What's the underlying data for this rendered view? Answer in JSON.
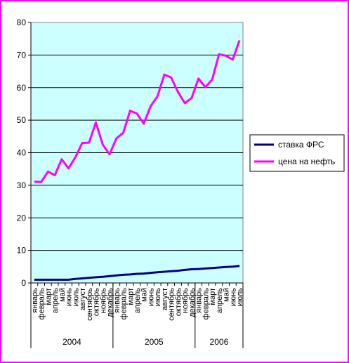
{
  "chart_data": {
    "type": "line",
    "title": "",
    "xlabel": "",
    "ylabel": "",
    "ylim": [
      0,
      80
    ],
    "yticks": [
      0,
      10,
      20,
      30,
      40,
      50,
      60,
      70,
      80
    ],
    "grid": "horizontal",
    "legend_position": "right",
    "plot_background": "#ccffff",
    "categories": [
      "январь",
      "февраль",
      "март",
      "апрель",
      "май",
      "июнь",
      "июль",
      "август",
      "сентябрь",
      "октябрь",
      "ноябрь",
      "декабрь",
      "январь",
      "февраль",
      "март",
      "апрель",
      "май",
      "июнь",
      "июль",
      "август",
      "сентябрь",
      "октябрь",
      "ноябрь",
      "декабрь",
      "январь",
      "февраль",
      "март",
      "апрель",
      "май",
      "июнь",
      "июль"
    ],
    "years": [
      {
        "label": "2004",
        "start": 0,
        "count": 12
      },
      {
        "label": "2005",
        "start": 12,
        "count": 12
      },
      {
        "label": "2006",
        "start": 24,
        "count": 7
      }
    ],
    "series": [
      {
        "name": "ставка   ФРС",
        "color": "#000080",
        "values": [
          1.0,
          1.0,
          1.0,
          1.0,
          1.0,
          1.0,
          1.25,
          1.4,
          1.6,
          1.75,
          1.9,
          2.1,
          2.3,
          2.5,
          2.6,
          2.8,
          2.9,
          3.1,
          3.3,
          3.45,
          3.6,
          3.75,
          4.0,
          4.2,
          4.3,
          4.45,
          4.6,
          4.75,
          4.9,
          5.0,
          5.25
        ]
      },
      {
        "name": "цена на нефть",
        "color": "#ff00ff",
        "values": [
          31.1,
          31,
          34.2,
          33.1,
          38,
          35.2,
          38.6,
          43,
          43.1,
          49.3,
          42.5,
          39.5,
          44.4,
          46.1,
          52.9,
          52,
          48.9,
          54.3,
          57.3,
          64,
          63.1,
          58.6,
          55.2,
          56.8,
          62.8,
          60.1,
          62.5,
          70.2,
          69.8,
          68.6,
          74.5
        ]
      }
    ]
  }
}
